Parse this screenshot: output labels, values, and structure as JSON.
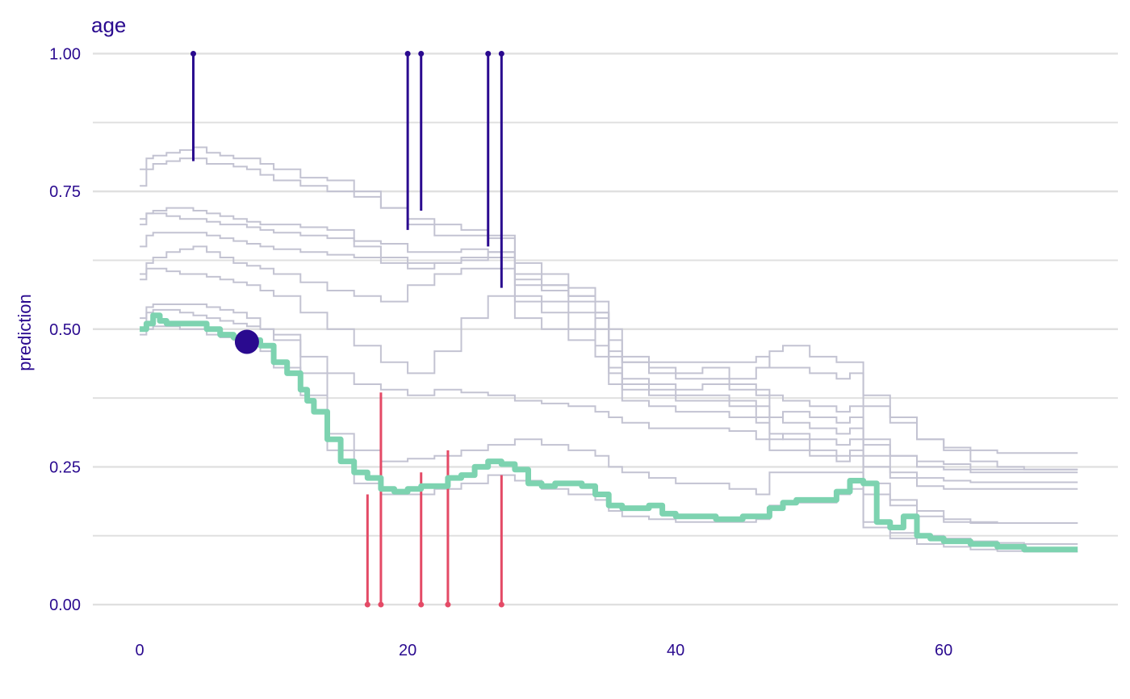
{
  "chart_data": {
    "type": "line",
    "title": "age",
    "xlabel": "",
    "ylabel": "prediction",
    "xlim": [
      -3.5,
      73
    ],
    "ylim": [
      -0.06,
      1.03
    ],
    "x_ticks": [
      0,
      20,
      40,
      60
    ],
    "x_tick_labels": [
      "0",
      "20",
      "40",
      "60"
    ],
    "y_ticks": [
      0,
      0.25,
      0.5,
      0.75,
      1.0
    ],
    "y_tick_labels": [
      "0.00",
      "0.25",
      "0.50",
      "0.75",
      "1.00"
    ],
    "y_minor_ticks": [
      0.125,
      0.375,
      0.625,
      0.875
    ],
    "grid": true,
    "colors": {
      "background_line": "#c3c3d2",
      "selected_line": "#7dd3b0",
      "observation": "#2a0a8f",
      "residual_positive": "#2a0a8f",
      "residual_negative": "#e44a66",
      "grid": "#e0e0e0",
      "text": "#2a0a8f"
    },
    "series": [
      {
        "x": [
          0,
          0.5,
          1,
          2,
          3,
          4,
          5,
          6,
          7,
          8,
          9,
          10,
          12,
          14,
          16,
          18,
          20,
          22,
          24,
          26,
          28,
          30,
          32,
          34,
          35,
          36,
          38,
          40,
          42,
          44,
          46,
          47,
          48,
          50,
          52,
          53,
          54,
          56,
          58,
          60,
          62,
          64,
          66,
          68,
          70
        ],
        "y": [
          0.79,
          0.81,
          0.815,
          0.82,
          0.825,
          0.83,
          0.82,
          0.815,
          0.81,
          0.81,
          0.8,
          0.79,
          0.775,
          0.77,
          0.75,
          0.72,
          0.7,
          0.69,
          0.68,
          0.67,
          0.62,
          0.6,
          0.575,
          0.55,
          0.5,
          0.45,
          0.44,
          0.44,
          0.44,
          0.44,
          0.45,
          0.43,
          0.43,
          0.42,
          0.41,
          0.42,
          0.36,
          0.33,
          0.3,
          0.285,
          0.28,
          0.275,
          0.275,
          0.275,
          0.275
        ]
      },
      {
        "x": [
          0,
          0.5,
          1,
          2,
          3,
          4,
          5,
          6,
          7,
          8,
          9,
          10,
          12,
          14,
          16,
          18,
          20,
          22,
          24,
          26,
          28,
          30,
          32,
          34,
          35,
          36,
          38,
          40,
          42,
          44,
          46,
          47,
          48,
          50,
          52,
          53,
          54,
          56,
          58,
          60,
          62,
          64,
          66,
          68,
          70
        ],
        "y": [
          0.76,
          0.79,
          0.8,
          0.805,
          0.81,
          0.81,
          0.8,
          0.8,
          0.795,
          0.79,
          0.78,
          0.77,
          0.76,
          0.75,
          0.74,
          0.72,
          0.69,
          0.67,
          0.67,
          0.665,
          0.6,
          0.58,
          0.56,
          0.53,
          0.48,
          0.44,
          0.43,
          0.42,
          0.43,
          0.41,
          0.43,
          0.46,
          0.47,
          0.45,
          0.44,
          0.44,
          0.38,
          0.34,
          0.3,
          0.28,
          0.26,
          0.25,
          0.245,
          0.245,
          0.245
        ]
      },
      {
        "x": [
          0,
          0.5,
          1,
          2,
          3,
          4,
          5,
          6,
          7,
          8,
          9,
          10,
          12,
          14,
          16,
          18,
          20,
          22,
          24,
          26,
          28,
          30,
          32,
          34,
          35,
          36,
          38,
          40,
          42,
          44,
          46,
          47,
          48,
          50,
          52,
          53,
          54,
          56,
          58,
          60,
          62,
          64,
          66,
          68,
          70
        ],
        "y": [
          0.69,
          0.71,
          0.715,
          0.72,
          0.72,
          0.715,
          0.71,
          0.705,
          0.7,
          0.695,
          0.69,
          0.69,
          0.685,
          0.68,
          0.66,
          0.655,
          0.64,
          0.64,
          0.645,
          0.64,
          0.59,
          0.58,
          0.56,
          0.53,
          0.46,
          0.44,
          0.42,
          0.41,
          0.41,
          0.4,
          0.38,
          0.34,
          0.35,
          0.34,
          0.33,
          0.34,
          0.29,
          0.27,
          0.26,
          0.255,
          0.245,
          0.245,
          0.245,
          0.245,
          0.245
        ]
      },
      {
        "x": [
          0,
          0.5,
          1,
          2,
          3,
          4,
          5,
          6,
          7,
          8,
          9,
          10,
          12,
          14,
          16,
          18,
          20,
          22,
          24,
          26,
          28,
          30,
          32,
          34,
          35,
          36,
          38,
          40,
          42,
          44,
          46,
          47,
          48,
          50,
          52,
          53,
          54,
          56,
          58,
          60,
          62,
          64,
          66,
          68,
          70
        ],
        "y": [
          0.7,
          0.71,
          0.71,
          0.705,
          0.7,
          0.7,
          0.695,
          0.69,
          0.69,
          0.685,
          0.68,
          0.675,
          0.67,
          0.665,
          0.65,
          0.63,
          0.62,
          0.62,
          0.63,
          0.64,
          0.58,
          0.57,
          0.55,
          0.52,
          0.45,
          0.41,
          0.4,
          0.39,
          0.4,
          0.39,
          0.39,
          0.38,
          0.37,
          0.36,
          0.35,
          0.36,
          0.3,
          0.27,
          0.25,
          0.245,
          0.24,
          0.24,
          0.24,
          0.24,
          0.24
        ]
      },
      {
        "x": [
          0,
          0.5,
          1,
          2,
          3,
          4,
          5,
          6,
          7,
          8,
          9,
          10,
          12,
          14,
          16,
          18,
          20,
          22,
          24,
          26,
          28,
          30,
          32,
          34,
          35,
          36,
          38,
          40,
          42,
          44,
          46,
          47,
          48,
          50,
          52,
          53,
          54,
          56,
          58,
          60,
          62,
          64,
          66,
          68,
          70
        ],
        "y": [
          0.65,
          0.67,
          0.675,
          0.675,
          0.675,
          0.675,
          0.67,
          0.665,
          0.66,
          0.655,
          0.65,
          0.645,
          0.64,
          0.635,
          0.63,
          0.62,
          0.61,
          0.62,
          0.625,
          0.63,
          0.56,
          0.55,
          0.53,
          0.5,
          0.43,
          0.4,
          0.39,
          0.38,
          0.38,
          0.37,
          0.36,
          0.34,
          0.33,
          0.32,
          0.31,
          0.32,
          0.27,
          0.24,
          0.23,
          0.225,
          0.222,
          0.222,
          0.222,
          0.222,
          0.222
        ]
      },
      {
        "x": [
          0,
          0.5,
          1,
          2,
          3,
          4,
          5,
          6,
          7,
          8,
          9,
          10,
          12,
          14,
          16,
          18,
          20,
          22,
          24,
          26,
          28,
          30,
          32,
          34,
          35,
          36,
          38,
          40,
          42,
          44,
          46,
          47,
          48,
          50,
          52,
          53,
          54,
          56,
          58,
          60,
          62,
          64,
          66,
          68,
          70
        ],
        "y": [
          0.59,
          0.62,
          0.63,
          0.64,
          0.645,
          0.65,
          0.64,
          0.63,
          0.62,
          0.615,
          0.61,
          0.6,
          0.585,
          0.57,
          0.56,
          0.55,
          0.58,
          0.6,
          0.61,
          0.61,
          0.55,
          0.53,
          0.5,
          0.47,
          0.42,
          0.39,
          0.38,
          0.37,
          0.37,
          0.36,
          0.34,
          0.3,
          0.31,
          0.3,
          0.29,
          0.3,
          0.25,
          0.23,
          0.215,
          0.21,
          0.21,
          0.21,
          0.21,
          0.21,
          0.21
        ]
      },
      {
        "x": [
          0,
          0.5,
          1,
          2,
          3,
          4,
          5,
          6,
          7,
          8,
          9,
          10,
          12,
          14,
          16,
          18,
          20,
          22,
          24,
          26,
          28,
          30,
          32,
          34,
          35,
          36,
          38,
          40,
          42,
          44,
          46,
          47,
          48,
          50,
          52,
          53,
          54,
          56,
          58,
          60,
          62,
          64,
          66,
          68,
          70
        ],
        "y": [
          0.6,
          0.61,
          0.61,
          0.605,
          0.6,
          0.6,
          0.595,
          0.59,
          0.585,
          0.58,
          0.57,
          0.56,
          0.53,
          0.5,
          0.47,
          0.44,
          0.42,
          0.46,
          0.52,
          0.56,
          0.52,
          0.5,
          0.48,
          0.45,
          0.4,
          0.37,
          0.36,
          0.35,
          0.35,
          0.34,
          0.33,
          0.31,
          0.3,
          0.28,
          0.27,
          0.28,
          0.22,
          0.19,
          0.17,
          0.155,
          0.15,
          0.148,
          0.148,
          0.148,
          0.148
        ]
      },
      {
        "x": [
          0,
          0.5,
          1,
          2,
          3,
          4,
          5,
          6,
          7,
          8,
          9,
          10,
          12,
          14,
          16,
          18,
          20,
          22,
          24,
          26,
          28,
          30,
          32,
          34,
          35,
          36,
          38,
          40,
          42,
          44,
          46,
          47,
          48,
          50,
          52,
          53,
          54,
          56,
          58,
          60,
          62,
          64,
          66,
          68,
          70
        ],
        "y": [
          0.52,
          0.54,
          0.545,
          0.545,
          0.545,
          0.545,
          0.54,
          0.535,
          0.53,
          0.52,
          0.5,
          0.48,
          0.45,
          0.42,
          0.4,
          0.39,
          0.38,
          0.39,
          0.385,
          0.38,
          0.37,
          0.365,
          0.36,
          0.35,
          0.34,
          0.33,
          0.32,
          0.32,
          0.32,
          0.315,
          0.3,
          0.28,
          0.28,
          0.27,
          0.26,
          0.27,
          0.2,
          0.18,
          0.16,
          0.15,
          0.148,
          0.148,
          0.148,
          0.148,
          0.148
        ]
      },
      {
        "x": [
          0,
          0.5,
          1,
          2,
          3,
          4,
          5,
          6,
          7,
          8,
          9,
          10,
          12,
          14,
          16,
          18,
          20,
          22,
          24,
          26,
          28,
          30,
          32,
          34,
          35,
          36,
          38,
          40,
          42,
          44,
          46,
          47,
          48,
          50,
          52,
          53,
          54,
          56,
          58,
          60,
          62,
          64,
          66,
          68,
          70
        ],
        "y": [
          0.5,
          0.53,
          0.535,
          0.535,
          0.53,
          0.525,
          0.52,
          0.515,
          0.51,
          0.505,
          0.5,
          0.49,
          0.42,
          0.31,
          0.28,
          0.26,
          0.265,
          0.27,
          0.28,
          0.29,
          0.3,
          0.29,
          0.28,
          0.27,
          0.25,
          0.24,
          0.23,
          0.22,
          0.22,
          0.21,
          0.2,
          0.24,
          0.24,
          0.24,
          0.24,
          0.24,
          0.15,
          0.13,
          0.125,
          0.12,
          0.115,
          0.112,
          0.11,
          0.11,
          0.11
        ]
      },
      {
        "x": [
          0,
          0.5,
          1,
          2,
          3,
          4,
          5,
          6,
          7,
          8,
          9,
          10,
          12,
          14,
          16,
          18,
          20,
          22,
          24,
          26,
          28,
          30,
          32,
          34,
          35,
          36,
          38,
          40,
          42,
          44,
          46,
          47,
          48,
          50,
          52,
          53,
          54,
          56,
          58,
          60,
          62,
          64,
          66,
          68,
          70
        ],
        "y": [
          0.49,
          0.5,
          0.505,
          0.505,
          0.5,
          0.5,
          0.49,
          0.485,
          0.48,
          0.475,
          0.46,
          0.43,
          0.38,
          0.28,
          0.22,
          0.2,
          0.2,
          0.21,
          0.22,
          0.235,
          0.225,
          0.21,
          0.2,
          0.19,
          0.17,
          0.16,
          0.155,
          0.15,
          0.15,
          0.15,
          0.155,
          0.18,
          0.185,
          0.185,
          0.2,
          0.21,
          0.14,
          0.12,
          0.11,
          0.105,
          0.1,
          0.097,
          0.096,
          0.096,
          0.096
        ]
      }
    ],
    "selected": {
      "x": [
        0,
        0.5,
        1,
        1.5,
        2,
        3,
        4,
        5,
        6,
        7,
        8,
        9,
        10,
        11,
        12,
        12.5,
        13,
        14,
        15,
        16,
        17,
        18,
        19,
        20,
        21,
        22,
        23,
        24,
        25,
        26,
        27,
        28,
        29,
        30,
        31,
        32,
        33,
        34,
        35,
        36,
        37,
        38,
        39,
        40,
        41,
        42,
        43,
        44,
        45,
        46,
        47,
        48,
        49,
        50,
        51,
        52,
        53,
        54,
        55,
        56,
        57,
        58,
        59,
        60,
        62,
        64,
        66,
        68,
        70
      ],
      "y": [
        0.5,
        0.51,
        0.525,
        0.515,
        0.51,
        0.51,
        0.51,
        0.5,
        0.49,
        0.485,
        0.48,
        0.47,
        0.44,
        0.42,
        0.39,
        0.37,
        0.35,
        0.3,
        0.26,
        0.24,
        0.23,
        0.21,
        0.205,
        0.21,
        0.215,
        0.215,
        0.23,
        0.235,
        0.25,
        0.26,
        0.255,
        0.245,
        0.22,
        0.215,
        0.22,
        0.22,
        0.215,
        0.2,
        0.18,
        0.175,
        0.175,
        0.18,
        0.165,
        0.16,
        0.16,
        0.16,
        0.155,
        0.155,
        0.16,
        0.16,
        0.175,
        0.185,
        0.19,
        0.19,
        0.19,
        0.205,
        0.225,
        0.22,
        0.15,
        0.14,
        0.16,
        0.125,
        0.12,
        0.115,
        0.11,
        0.105,
        0.1,
        0.1,
        0.1
      ]
    },
    "observation": {
      "x": 8,
      "y": 0.477
    },
    "residuals": [
      {
        "x": 4,
        "y_from": 0.805,
        "y_to": 1.0,
        "sign": "positive"
      },
      {
        "x": 20,
        "y_from": 0.68,
        "y_to": 1.0,
        "sign": "positive"
      },
      {
        "x": 21,
        "y_from": 0.715,
        "y_to": 1.0,
        "sign": "positive"
      },
      {
        "x": 26,
        "y_from": 0.65,
        "y_to": 1.0,
        "sign": "positive"
      },
      {
        "x": 27,
        "y_from": 0.575,
        "y_to": 1.0,
        "sign": "positive"
      },
      {
        "x": 17,
        "y_from": 0.2,
        "y_to": 0.0,
        "sign": "negative"
      },
      {
        "x": 18,
        "y_from": 0.385,
        "y_to": 0.0,
        "sign": "negative"
      },
      {
        "x": 21,
        "y_from": 0.24,
        "y_to": 0.0,
        "sign": "negative"
      },
      {
        "x": 23,
        "y_from": 0.28,
        "y_to": 0.0,
        "sign": "negative"
      },
      {
        "x": 27,
        "y_from": 0.235,
        "y_to": 0.0,
        "sign": "negative"
      }
    ]
  }
}
